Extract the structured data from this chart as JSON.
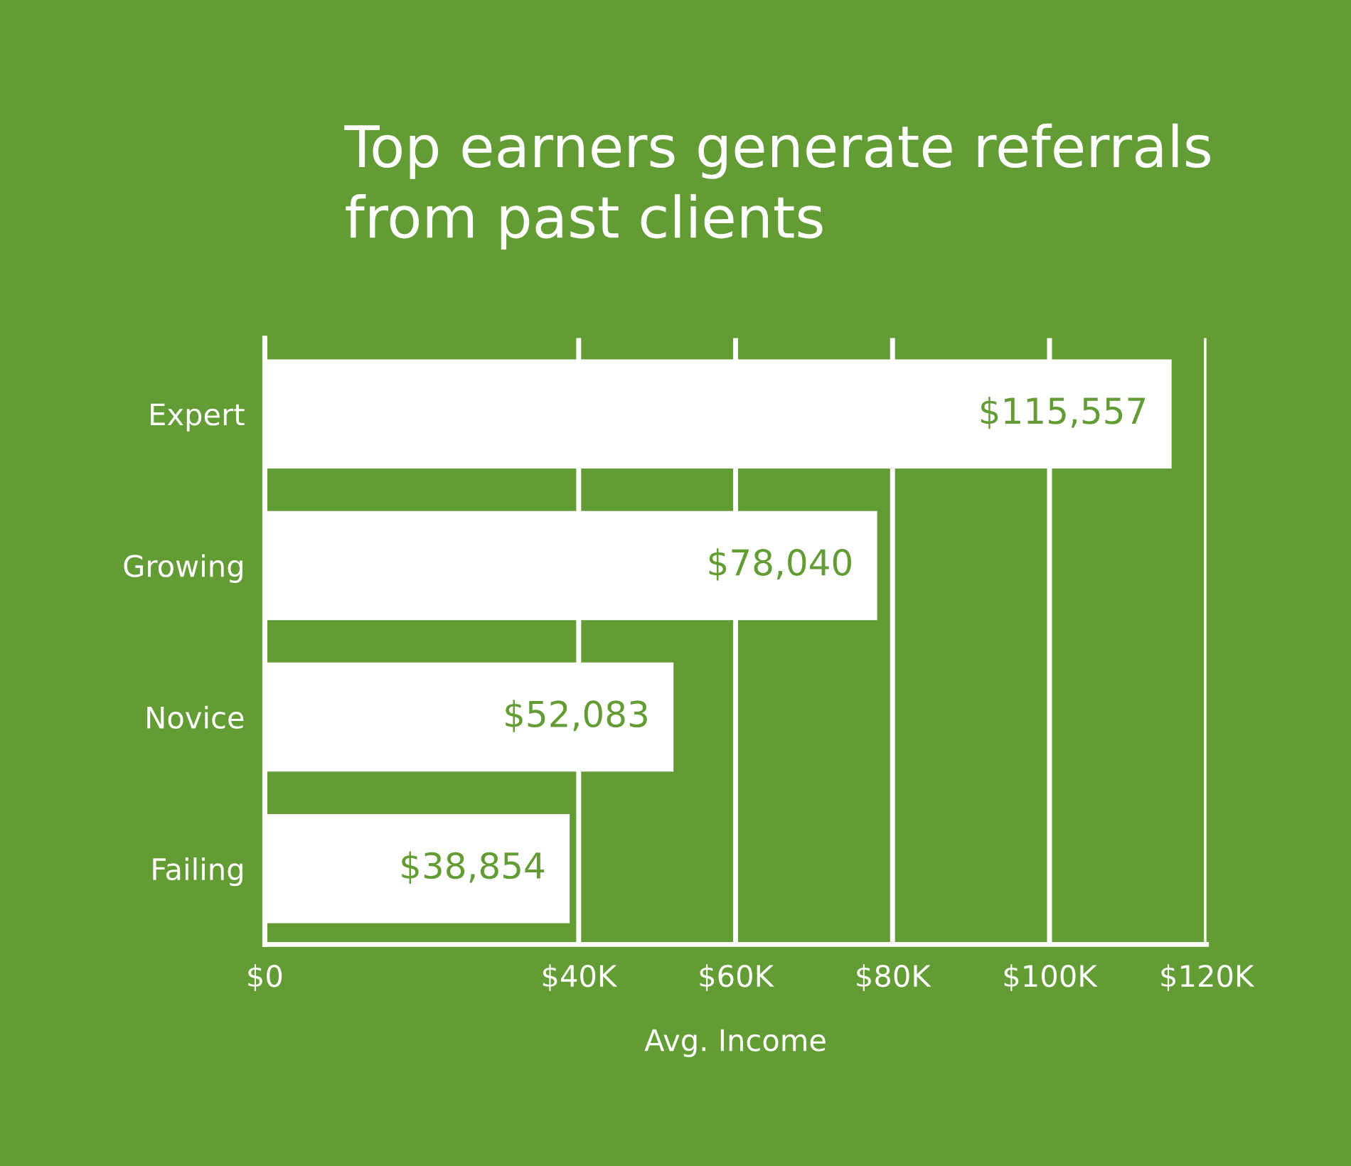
{
  "chart_data": {
    "type": "bar",
    "orientation": "horizontal",
    "title": "Top earners generate referrals\nfrom past clients",
    "categories": [
      "Expert",
      "Growing",
      "Novice",
      "Failing"
    ],
    "values": [
      115557,
      78040,
      52083,
      38854
    ],
    "value_labels": [
      "$115,557",
      "$78,040",
      "$52,083",
      "$38,854"
    ],
    "color": "#ffffff",
    "xlabel": "Avg. Income",
    "xlim": [
      0,
      120000
    ],
    "xticks": [
      {
        "value": 0,
        "label": "$0"
      },
      {
        "value": 40000,
        "label": "$40K"
      },
      {
        "value": 60000,
        "label": "$60K"
      },
      {
        "value": 80000,
        "label": "$80K"
      },
      {
        "value": 100000,
        "label": "$100K"
      },
      {
        "value": 120000,
        "label": "$120K"
      }
    ],
    "grid": "x"
  }
}
